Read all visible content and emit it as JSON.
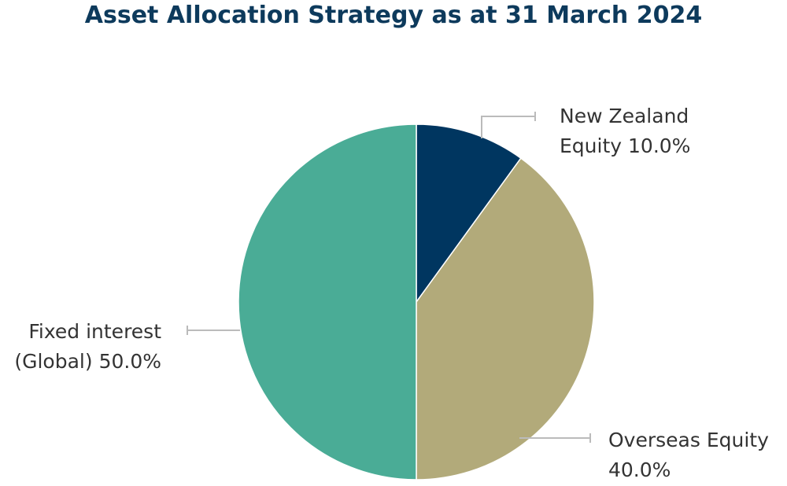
{
  "chart_data": {
    "type": "pie",
    "title": "Asset Allocation Strategy as at 31 March 2024",
    "categories": [
      "New Zealand Equity",
      "Overseas Equity",
      "Fixed interest (Global)"
    ],
    "values": [
      10,
      40,
      50
    ],
    "value_labels": [
      "10.0%",
      "40.0%",
      "50.0%"
    ],
    "colors": [
      "#003660",
      "#b2aa7a",
      "#4aac96"
    ]
  }
}
